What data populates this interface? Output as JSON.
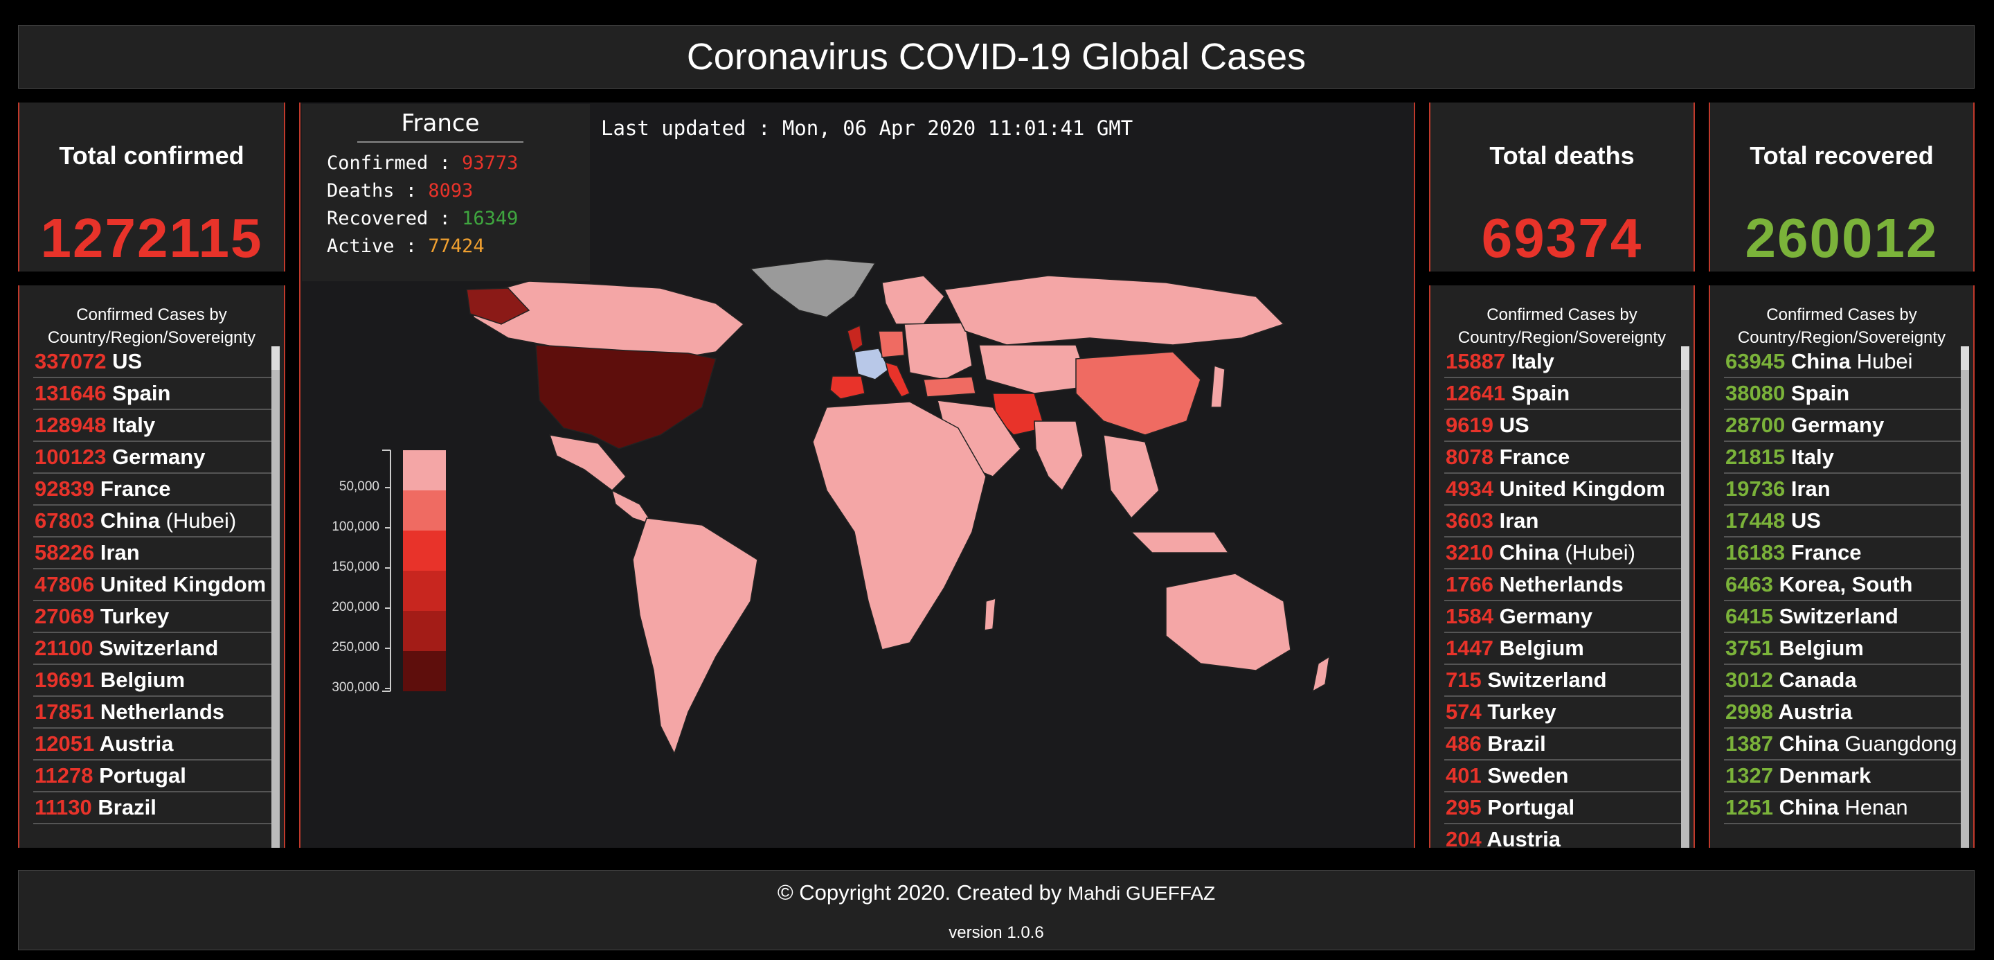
{
  "header": {
    "title": "Coronavirus COVID-19 Global Cases"
  },
  "stats": {
    "confirmed": {
      "label": "Total confirmed",
      "value": "1272115"
    },
    "deaths": {
      "label": "Total deaths",
      "value": "69374"
    },
    "recovered": {
      "label": "Total recovered",
      "value": "260012"
    }
  },
  "lists": {
    "title_line1": "Confirmed Cases by",
    "title_line2": "Country/Region/Sovereignty",
    "confirmed": [
      {
        "num": "337072",
        "country": "US",
        "region": ""
      },
      {
        "num": "131646",
        "country": "Spain",
        "region": ""
      },
      {
        "num": "128948",
        "country": "Italy",
        "region": ""
      },
      {
        "num": "100123",
        "country": "Germany",
        "region": ""
      },
      {
        "num": "92839",
        "country": "France",
        "region": ""
      },
      {
        "num": "67803",
        "country": "China",
        "region": "(Hubei)"
      },
      {
        "num": "58226",
        "country": "Iran",
        "region": ""
      },
      {
        "num": "47806",
        "country": "United Kingdom",
        "region": ""
      },
      {
        "num": "27069",
        "country": "Turkey",
        "region": ""
      },
      {
        "num": "21100",
        "country": "Switzerland",
        "region": ""
      },
      {
        "num": "19691",
        "country": "Belgium",
        "region": ""
      },
      {
        "num": "17851",
        "country": "Netherlands",
        "region": ""
      },
      {
        "num": "12051",
        "country": "Austria",
        "region": ""
      },
      {
        "num": "11278",
        "country": "Portugal",
        "region": ""
      },
      {
        "num": "11130",
        "country": "Brazil",
        "region": ""
      }
    ],
    "deaths": [
      {
        "num": "15887",
        "country": "Italy",
        "region": ""
      },
      {
        "num": "12641",
        "country": "Spain",
        "region": ""
      },
      {
        "num": "9619",
        "country": "US",
        "region": ""
      },
      {
        "num": "8078",
        "country": "France",
        "region": ""
      },
      {
        "num": "4934",
        "country": "United Kingdom",
        "region": ""
      },
      {
        "num": "3603",
        "country": "Iran",
        "region": ""
      },
      {
        "num": "3210",
        "country": "China",
        "region": "(Hubei)"
      },
      {
        "num": "1766",
        "country": "Netherlands",
        "region": ""
      },
      {
        "num": "1584",
        "country": "Germany",
        "region": ""
      },
      {
        "num": "1447",
        "country": "Belgium",
        "region": ""
      },
      {
        "num": "715",
        "country": "Switzerland",
        "region": ""
      },
      {
        "num": "574",
        "country": "Turkey",
        "region": ""
      },
      {
        "num": "486",
        "country": "Brazil",
        "region": ""
      },
      {
        "num": "401",
        "country": "Sweden",
        "region": ""
      },
      {
        "num": "295",
        "country": "Portugal",
        "region": ""
      },
      {
        "num": "204",
        "country": "Austria",
        "region": ""
      }
    ],
    "recovered": [
      {
        "num": "63945",
        "country": "China",
        "region": "Hubei"
      },
      {
        "num": "38080",
        "country": "Spain",
        "region": ""
      },
      {
        "num": "28700",
        "country": "Germany",
        "region": ""
      },
      {
        "num": "21815",
        "country": "Italy",
        "region": ""
      },
      {
        "num": "19736",
        "country": "Iran",
        "region": ""
      },
      {
        "num": "17448",
        "country": "US",
        "region": ""
      },
      {
        "num": "16183",
        "country": "France",
        "region": ""
      },
      {
        "num": "6463",
        "country": "Korea, South",
        "region": ""
      },
      {
        "num": "6415",
        "country": "Switzerland",
        "region": ""
      },
      {
        "num": "3751",
        "country": "Belgium",
        "region": ""
      },
      {
        "num": "3012",
        "country": "Canada",
        "region": ""
      },
      {
        "num": "2998",
        "country": "Austria",
        "region": ""
      },
      {
        "num": "1387",
        "country": "China",
        "region": "Guangdong"
      },
      {
        "num": "1327",
        "country": "Denmark",
        "region": ""
      },
      {
        "num": "1251",
        "country": "China",
        "region": "Henan"
      }
    ]
  },
  "tooltip": {
    "country": "France",
    "confirmed_label": "Confirmed : ",
    "confirmed": "93773",
    "deaths_label": "Deaths : ",
    "deaths": "8093",
    "recovered_label": "Recovered : ",
    "recovered": "16349",
    "active_label": "Active : ",
    "active": "77424"
  },
  "map": {
    "updated": "Last updated : Mon, 06 Apr 2020 11:01:41 GMT",
    "legend": [
      "50,000",
      "100,000",
      "150,000",
      "200,000",
      "250,000",
      "300,000"
    ],
    "legend_colors": [
      "#f4a6a6",
      "#ef6b62",
      "#e8332a",
      "#c8261f",
      "#a31c17",
      "#5e0e0c"
    ]
  },
  "footer": {
    "copyright": "© Copyright 2020. Created by",
    "author": "Mahdi GUEFFAZ",
    "version": "version 1.0.6"
  },
  "colors": {
    "accent_red": "#e8332a",
    "green": "#7bb33a",
    "orange": "#f0a030",
    "panel": "#222222"
  }
}
